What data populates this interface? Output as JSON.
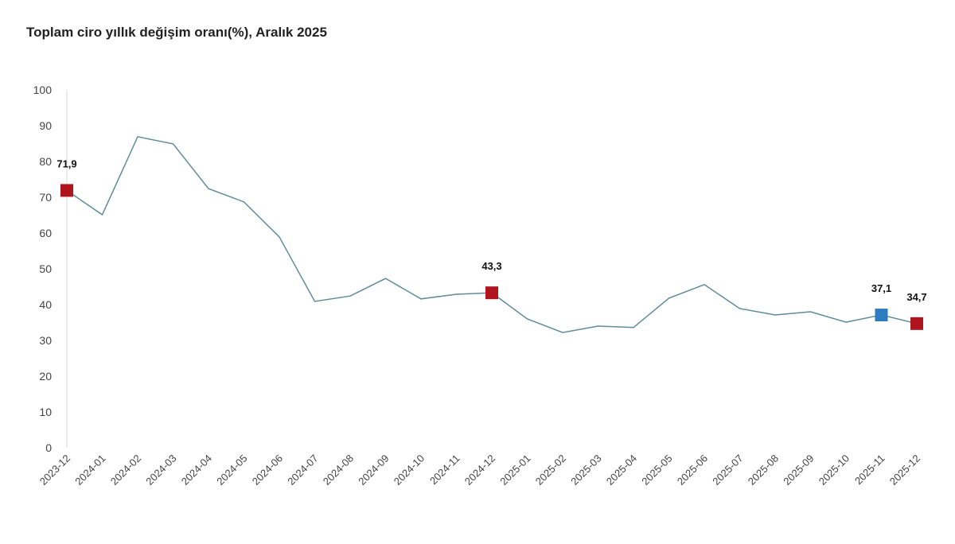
{
  "chart_data": {
    "type": "line",
    "title": "Toplam ciro yıllık değişim oranı(%), Aralık 2025",
    "xlabel": "",
    "ylabel": "",
    "ylim": [
      0,
      100
    ],
    "yticks": [
      0,
      10,
      20,
      30,
      40,
      50,
      60,
      70,
      80,
      90,
      100
    ],
    "grid": false,
    "categories": [
      "2023-12",
      "2024-01",
      "2024-02",
      "2024-03",
      "2024-04",
      "2024-05",
      "2024-06",
      "2024-07",
      "2024-08",
      "2024-09",
      "2024-10",
      "2024-11",
      "2024-12",
      "2025-01",
      "2025-02",
      "2025-03",
      "2025-04",
      "2025-05",
      "2025-06",
      "2025-07",
      "2025-08",
      "2025-09",
      "2025-10",
      "2025-11",
      "2025-12"
    ],
    "series": [
      {
        "values": [
          71.9,
          65.1,
          86.9,
          84.9,
          72.4,
          68.7,
          58.9,
          40.9,
          42.4,
          47.3,
          41.6,
          42.9,
          43.3,
          36.0,
          32.2,
          34.0,
          33.6,
          41.8,
          45.6,
          38.9,
          37.1,
          38.0,
          35.1,
          37.1,
          34.7
        ],
        "color": "#5f8c99"
      }
    ],
    "highlighted_points": [
      {
        "category": "2023-12",
        "label": "71,9",
        "color": "#b0141c"
      },
      {
        "category": "2024-12",
        "label": "43,3",
        "color": "#b0141c"
      },
      {
        "category": "2025-11",
        "label": "37,1",
        "color": "#2e7bbf"
      },
      {
        "category": "2025-12",
        "label": "34,7",
        "color": "#b0141c"
      }
    ]
  }
}
